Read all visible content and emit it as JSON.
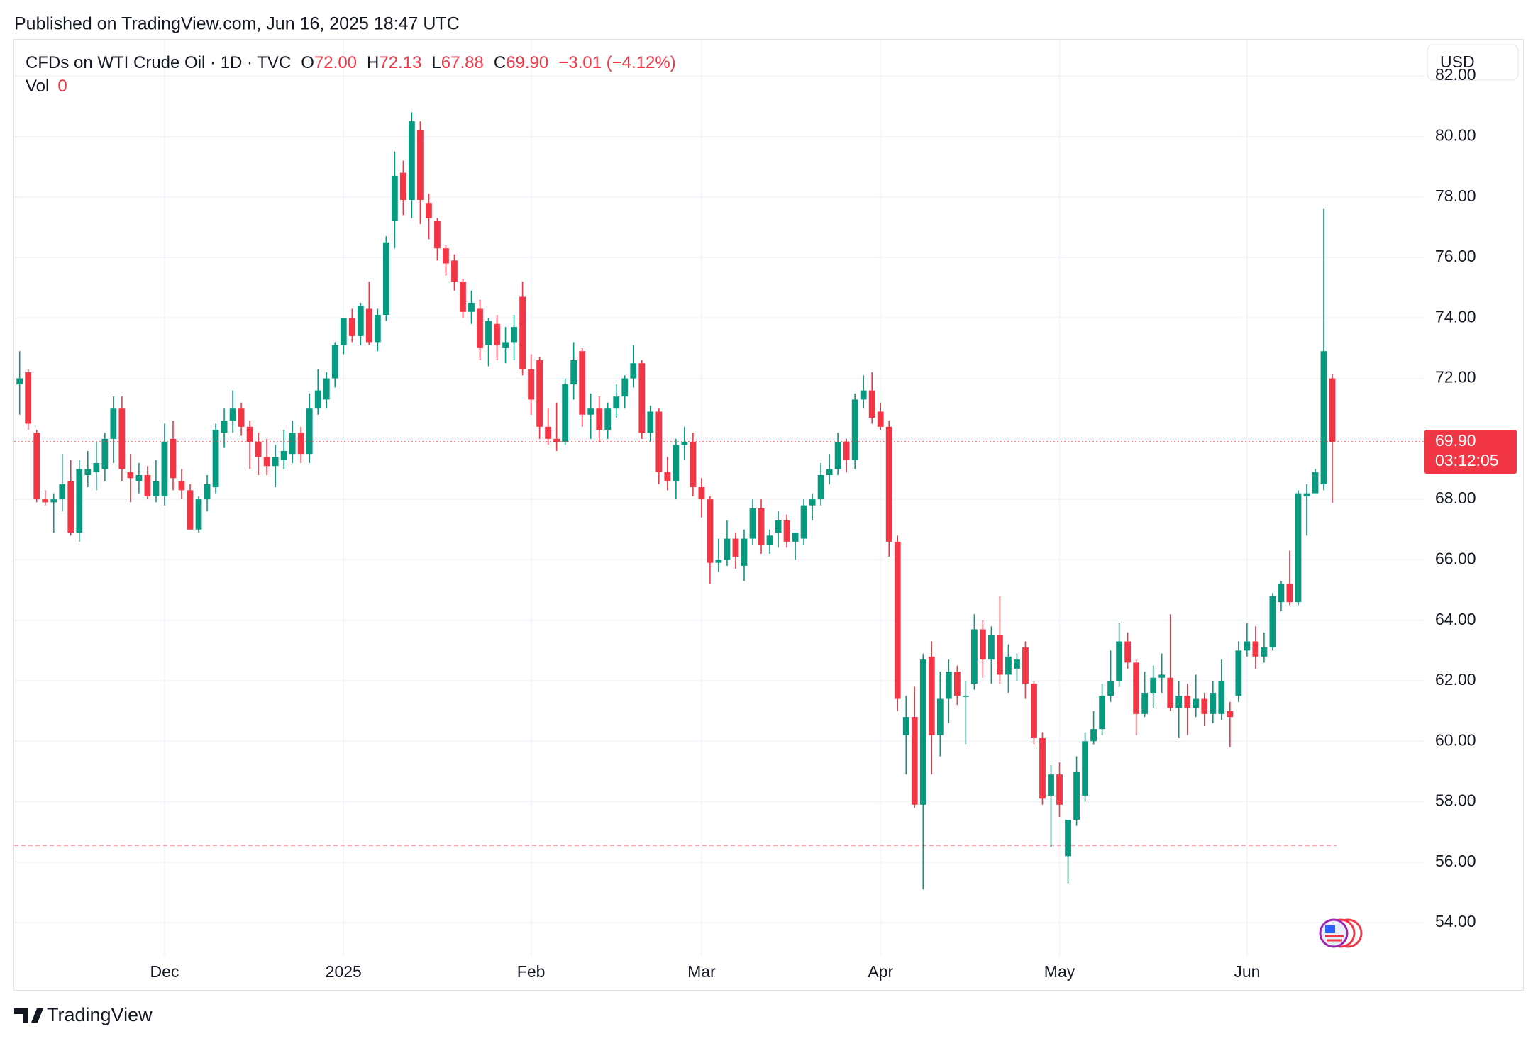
{
  "page": {
    "published": "Published on TradingView.com, Jun 16, 2025 18:47 UTC",
    "brand": "TradingView",
    "currency": "USD"
  },
  "chart_data": {
    "type": "candlestick",
    "legend": {
      "symbol": "CFDs on WTI Crude Oil · 1D · TVC",
      "o": "O",
      "o_value": "72.00",
      "h": "H",
      "h_value": "72.13",
      "l": "L",
      "l_value": "67.88",
      "c": "C",
      "c_value": "69.90",
      "change": "−3.01 (−4.12%)",
      "vol": "Vol",
      "vol_value": "0"
    },
    "up_color": "#089981",
    "down_color": "#f23645",
    "last_price": {
      "value": 69.9,
      "label": "69.90"
    },
    "countdown": "03:12:05",
    "reference_level": 56.55,
    "ylim": [
      52.9,
      83.2
    ],
    "yticks": [
      {
        "value": 54,
        "label": "54.00"
      },
      {
        "value": 56,
        "label": "56.00"
      },
      {
        "value": 58,
        "label": "58.00"
      },
      {
        "value": 60,
        "label": "60.00"
      },
      {
        "value": 62,
        "label": "62.00"
      },
      {
        "value": 64,
        "label": "64.00"
      },
      {
        "value": 66,
        "label": "66.00"
      },
      {
        "value": 68,
        "label": "68.00"
      },
      {
        "value": 70,
        "label": "70.00"
      },
      {
        "value": 72,
        "label": "72.00"
      },
      {
        "value": 74,
        "label": "74.00"
      },
      {
        "value": 76,
        "label": "76.00"
      },
      {
        "value": 78,
        "label": "78.00"
      },
      {
        "value": 80,
        "label": "80.00"
      },
      {
        "value": 82,
        "label": "82.00"
      }
    ],
    "grid": true,
    "categories": [
      null,
      null,
      null,
      null,
      null,
      null,
      null,
      null,
      null,
      null,
      null,
      null,
      null,
      null,
      null,
      null,
      null,
      "Dec",
      null,
      null,
      null,
      null,
      null,
      null,
      null,
      null,
      null,
      null,
      null,
      null,
      null,
      null,
      null,
      null,
      null,
      null,
      null,
      null,
      "2025",
      null,
      null,
      null,
      null,
      null,
      null,
      null,
      null,
      null,
      null,
      null,
      null,
      null,
      null,
      null,
      null,
      null,
      null,
      null,
      null,
      null,
      "Feb",
      null,
      null,
      null,
      null,
      null,
      null,
      null,
      null,
      null,
      null,
      null,
      null,
      null,
      null,
      null,
      null,
      null,
      null,
      null,
      "Mar",
      null,
      null,
      null,
      null,
      null,
      null,
      null,
      null,
      null,
      null,
      null,
      null,
      null,
      null,
      null,
      null,
      null,
      null,
      null,
      null,
      "Apr",
      null,
      null,
      null,
      null,
      null,
      null,
      null,
      null,
      null,
      null,
      null,
      null,
      null,
      null,
      null,
      null,
      null,
      null,
      null,
      null,
      "May",
      null,
      null,
      null,
      null,
      null,
      null,
      null,
      null,
      null,
      null,
      null,
      null,
      null,
      null,
      null,
      null,
      null,
      null,
      null,
      null,
      null,
      "Jun",
      null,
      null,
      null,
      null,
      null,
      null,
      null,
      null,
      null,
      null
    ],
    "ohlc": [
      [
        71.8,
        72.9,
        70.8,
        72.0
      ],
      [
        72.2,
        72.3,
        70.3,
        70.5
      ],
      [
        70.2,
        70.3,
        67.9,
        68.0
      ],
      [
        68.0,
        68.3,
        67.8,
        67.9
      ],
      [
        67.9,
        68.2,
        66.9,
        68.0
      ],
      [
        68.0,
        69.5,
        67.6,
        68.5
      ],
      [
        68.6,
        69.3,
        66.8,
        66.9
      ],
      [
        66.9,
        69.3,
        66.6,
        69.0
      ],
      [
        68.8,
        69.6,
        68.4,
        69.0
      ],
      [
        68.9,
        69.9,
        68.3,
        69.2
      ],
      [
        69.0,
        70.2,
        68.6,
        70.0
      ],
      [
        70.0,
        71.4,
        69.2,
        71.0
      ],
      [
        71.0,
        71.4,
        68.6,
        69.0
      ],
      [
        68.9,
        69.5,
        67.9,
        68.7
      ],
      [
        68.6,
        69.2,
        68.2,
        68.8
      ],
      [
        68.8,
        69.1,
        68.0,
        68.1
      ],
      [
        68.1,
        69.3,
        67.9,
        68.6
      ],
      [
        68.1,
        70.5,
        67.8,
        69.9
      ],
      [
        70.0,
        70.6,
        68.3,
        68.7
      ],
      [
        68.6,
        69.0,
        68.0,
        68.3
      ],
      [
        68.3,
        68.5,
        67.0,
        67.0
      ],
      [
        67.0,
        68.1,
        66.9,
        68.0
      ],
      [
        68.0,
        68.8,
        67.6,
        68.5
      ],
      [
        68.4,
        70.5,
        68.2,
        70.3
      ],
      [
        70.2,
        71.0,
        69.7,
        70.6
      ],
      [
        70.6,
        71.6,
        70.2,
        71.0
      ],
      [
        71.0,
        71.2,
        70.1,
        70.4
      ],
      [
        70.4,
        70.6,
        69.0,
        69.9
      ],
      [
        69.9,
        70.2,
        68.8,
        69.4
      ],
      [
        69.4,
        70.0,
        68.8,
        69.1
      ],
      [
        69.1,
        69.8,
        68.4,
        69.4
      ],
      [
        69.3,
        70.3,
        69.0,
        69.6
      ],
      [
        69.5,
        70.6,
        69.2,
        70.2
      ],
      [
        70.2,
        70.4,
        69.2,
        69.5
      ],
      [
        69.5,
        71.5,
        69.2,
        71.0
      ],
      [
        71.0,
        72.3,
        70.8,
        71.6
      ],
      [
        71.3,
        72.2,
        71.0,
        72.0
      ],
      [
        72.0,
        73.2,
        71.7,
        73.1
      ],
      [
        73.1,
        74.0,
        72.8,
        74.0
      ],
      [
        74.0,
        74.3,
        73.2,
        73.4
      ],
      [
        73.4,
        74.5,
        73.1,
        74.4
      ],
      [
        74.3,
        75.2,
        73.1,
        73.2
      ],
      [
        73.2,
        74.3,
        72.9,
        74.1
      ],
      [
        74.1,
        76.7,
        73.9,
        76.5
      ],
      [
        77.2,
        79.5,
        76.3,
        78.7
      ],
      [
        78.8,
        79.2,
        77.4,
        77.9
      ],
      [
        77.9,
        80.8,
        77.3,
        80.5
      ],
      [
        80.2,
        80.5,
        77.1,
        77.9
      ],
      [
        77.8,
        78.1,
        76.6,
        77.3
      ],
      [
        77.2,
        77.3,
        75.9,
        76.3
      ],
      [
        76.3,
        76.4,
        75.4,
        75.8
      ],
      [
        75.9,
        76.1,
        74.9,
        75.2
      ],
      [
        75.2,
        75.3,
        74.0,
        74.2
      ],
      [
        74.2,
        74.9,
        73.8,
        74.5
      ],
      [
        74.3,
        74.6,
        72.6,
        73.0
      ],
      [
        73.1,
        74.0,
        72.4,
        73.9
      ],
      [
        73.8,
        74.1,
        72.6,
        73.1
      ],
      [
        73.0,
        73.7,
        72.5,
        73.2
      ],
      [
        73.2,
        74.1,
        72.6,
        73.7
      ],
      [
        74.7,
        75.2,
        72.1,
        72.3
      ],
      [
        72.3,
        72.8,
        70.8,
        71.3
      ],
      [
        72.6,
        72.7,
        70.0,
        70.4
      ],
      [
        70.4,
        71.0,
        69.8,
        70.0
      ],
      [
        70.0,
        71.2,
        69.6,
        69.9
      ],
      [
        69.9,
        72.0,
        69.8,
        71.8
      ],
      [
        71.8,
        73.2,
        71.3,
        72.6
      ],
      [
        72.9,
        73.0,
        70.4,
        70.8
      ],
      [
        70.8,
        71.5,
        70.0,
        71.0
      ],
      [
        71.0,
        71.4,
        69.9,
        70.3
      ],
      [
        70.3,
        71.2,
        70.0,
        71.0
      ],
      [
        71.0,
        71.8,
        70.7,
        71.4
      ],
      [
        71.4,
        72.1,
        71.0,
        72.0
      ],
      [
        72.0,
        73.1,
        71.7,
        72.5
      ],
      [
        72.5,
        72.6,
        70.0,
        70.2
      ],
      [
        70.2,
        71.1,
        69.9,
        70.9
      ],
      [
        70.9,
        71.0,
        68.5,
        68.9
      ],
      [
        68.9,
        69.4,
        68.3,
        68.6
      ],
      [
        68.6,
        70.0,
        68.0,
        69.8
      ],
      [
        69.8,
        70.4,
        69.3,
        69.9
      ],
      [
        69.9,
        70.2,
        68.1,
        68.4
      ],
      [
        68.4,
        68.7,
        67.4,
        68.0
      ],
      [
        68.0,
        68.1,
        65.2,
        65.9
      ],
      [
        65.9,
        66.7,
        65.6,
        66.0
      ],
      [
        66.0,
        67.3,
        65.8,
        66.7
      ],
      [
        66.7,
        66.9,
        65.7,
        66.1
      ],
      [
        65.8,
        67.0,
        65.3,
        66.7
      ],
      [
        66.7,
        68.0,
        66.5,
        67.7
      ],
      [
        67.7,
        68.0,
        66.2,
        66.5
      ],
      [
        66.5,
        67.0,
        66.2,
        66.8
      ],
      [
        66.9,
        67.6,
        66.4,
        67.3
      ],
      [
        67.3,
        67.5,
        66.4,
        66.6
      ],
      [
        66.6,
        66.9,
        66.0,
        66.9
      ],
      [
        66.7,
        68.0,
        66.5,
        67.8
      ],
      [
        67.8,
        68.2,
        67.3,
        68.0
      ],
      [
        68.0,
        69.2,
        67.8,
        68.8
      ],
      [
        68.8,
        69.5,
        68.5,
        69.0
      ],
      [
        69.0,
        70.2,
        68.8,
        69.9
      ],
      [
        69.9,
        70.0,
        68.9,
        69.3
      ],
      [
        69.3,
        71.5,
        69.0,
        71.3
      ],
      [
        71.3,
        72.1,
        71.0,
        71.6
      ],
      [
        71.6,
        72.2,
        70.5,
        70.7
      ],
      [
        70.9,
        71.2,
        70.3,
        70.4
      ],
      [
        70.4,
        70.6,
        66.1,
        66.6
      ],
      [
        66.6,
        66.8,
        61.0,
        61.4
      ],
      [
        60.2,
        61.5,
        58.9,
        60.8
      ],
      [
        60.8,
        61.8,
        57.8,
        57.9
      ],
      [
        57.9,
        62.9,
        55.1,
        62.7
      ],
      [
        62.8,
        63.3,
        58.9,
        60.2
      ],
      [
        60.2,
        62.3,
        59.5,
        61.4
      ],
      [
        61.4,
        62.7,
        60.6,
        62.3
      ],
      [
        62.3,
        62.5,
        61.2,
        61.5
      ],
      [
        61.5,
        62.0,
        59.9,
        61.5
      ],
      [
        61.9,
        64.2,
        61.7,
        63.7
      ],
      [
        63.7,
        64.0,
        62.1,
        62.7
      ],
      [
        62.7,
        63.8,
        61.9,
        63.5
      ],
      [
        63.5,
        64.8,
        61.9,
        62.2
      ],
      [
        62.2,
        63.2,
        61.6,
        62.8
      ],
      [
        62.4,
        62.9,
        62.0,
        62.7
      ],
      [
        63.1,
        63.3,
        61.4,
        61.9
      ],
      [
        61.9,
        62.0,
        59.9,
        60.1
      ],
      [
        60.1,
        60.3,
        57.9,
        58.1
      ],
      [
        58.2,
        59.2,
        56.5,
        58.9
      ],
      [
        58.9,
        59.3,
        57.5,
        57.9
      ],
      [
        56.2,
        57.4,
        55.3,
        57.4
      ],
      [
        57.4,
        59.5,
        57.2,
        59.0
      ],
      [
        58.2,
        60.3,
        58.0,
        60.0
      ],
      [
        60.0,
        61.0,
        59.9,
        60.4
      ],
      [
        60.4,
        61.9,
        60.2,
        61.5
      ],
      [
        61.5,
        63.0,
        61.3,
        62.0
      ],
      [
        62.0,
        63.9,
        61.8,
        63.3
      ],
      [
        63.3,
        63.6,
        62.4,
        62.6
      ],
      [
        62.6,
        62.7,
        60.2,
        60.9
      ],
      [
        60.9,
        62.3,
        60.8,
        61.6
      ],
      [
        61.6,
        62.5,
        61.1,
        62.1
      ],
      [
        62.1,
        62.9,
        61.6,
        62.2
      ],
      [
        62.1,
        64.2,
        61.0,
        61.1
      ],
      [
        61.1,
        62.0,
        60.1,
        61.5
      ],
      [
        61.5,
        61.9,
        60.2,
        61.1
      ],
      [
        61.1,
        62.2,
        60.8,
        61.4
      ],
      [
        61.4,
        61.6,
        60.5,
        60.9
      ],
      [
        60.9,
        62.0,
        60.6,
        61.6
      ],
      [
        60.9,
        62.7,
        60.7,
        62.0
      ],
      [
        61.0,
        61.3,
        59.8,
        60.8
      ],
      [
        61.5,
        63.3,
        61.3,
        63.0
      ],
      [
        63.0,
        63.9,
        62.8,
        63.3
      ],
      [
        63.3,
        63.8,
        62.4,
        62.8
      ],
      [
        62.8,
        63.6,
        62.6,
        63.1
      ],
      [
        63.1,
        64.9,
        63.0,
        64.8
      ],
      [
        64.6,
        65.3,
        64.3,
        65.2
      ],
      [
        65.2,
        66.3,
        64.5,
        64.6
      ],
      [
        64.6,
        68.3,
        64.5,
        68.2
      ],
      [
        68.1,
        68.5,
        66.8,
        68.2
      ],
      [
        68.2,
        69.0,
        68.2,
        68.9
      ],
      [
        68.5,
        77.6,
        68.3,
        72.9
      ],
      [
        72,
        72.13,
        67.88,
        69.9
      ]
    ]
  }
}
